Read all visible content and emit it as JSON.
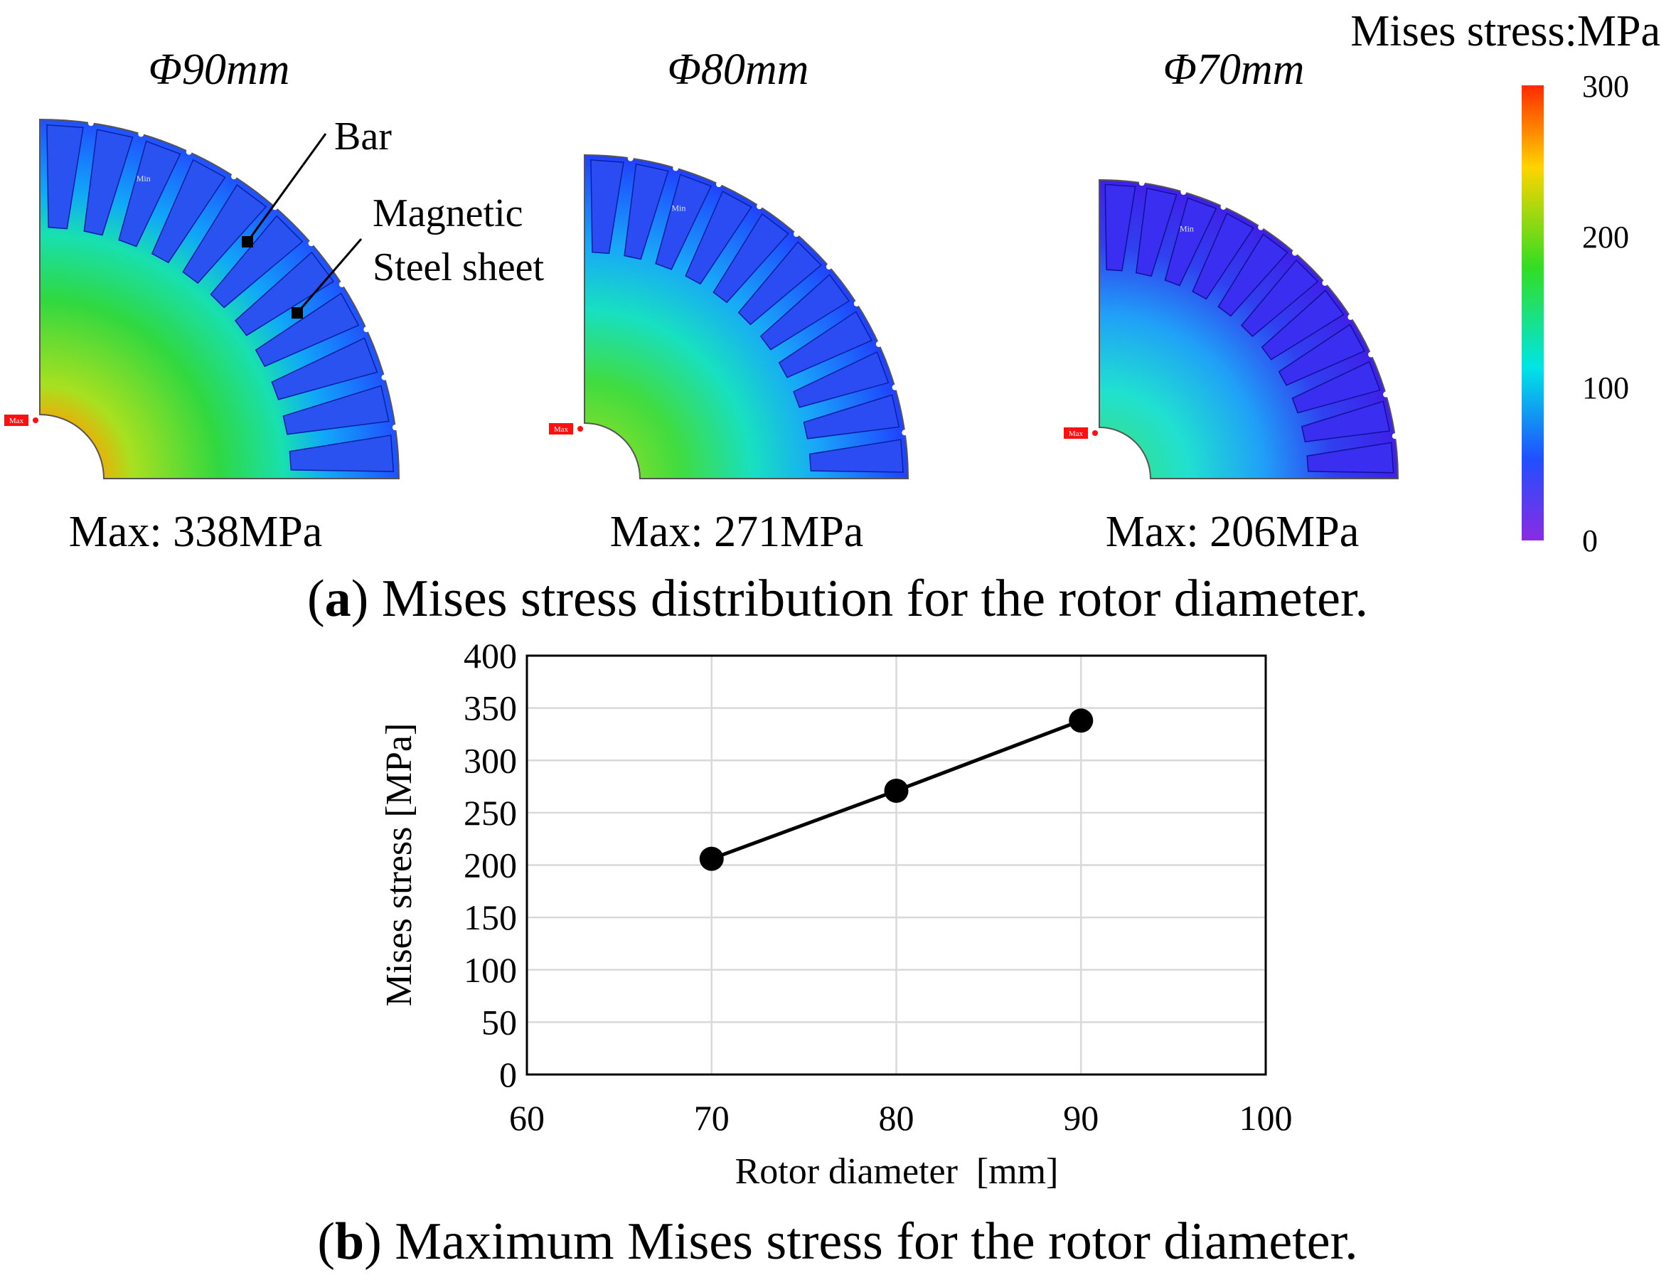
{
  "panel_a": {
    "caption_letter": "a",
    "caption_text": "Mises stress distribution for the rotor diameter.",
    "colorbar": {
      "title": "Mises stress:MPa",
      "ticks": [
        "300",
        "200",
        "100",
        "0"
      ],
      "range": [
        0,
        300
      ],
      "colors": [
        "#ff2a00",
        "#ffd400",
        "#33dd22",
        "#00e5e5",
        "#2050ff",
        "#8a2be2"
      ]
    },
    "rotors": [
      {
        "title": "Φ90mm",
        "max_label": "Max: 338MPa",
        "max_value": 338,
        "diameter_mm": 90,
        "max_tag": "Max",
        "min_tag": "Min"
      },
      {
        "title": "Φ80mm",
        "max_label": "Max: 271MPa",
        "max_value": 271,
        "diameter_mm": 80,
        "max_tag": "Max",
        "min_tag": "Min"
      },
      {
        "title": "Φ70mm",
        "max_label": "Max: 206MPa",
        "max_value": 206,
        "diameter_mm": 70,
        "max_tag": "Max",
        "min_tag": "Min"
      }
    ],
    "annotations": {
      "bar": "Bar",
      "magnetic_line1": "Magnetic",
      "magnetic_line2": "Steel sheet"
    }
  },
  "panel_b": {
    "caption_letter": "b",
    "caption_text": "Maximum Mises stress for the rotor diameter."
  },
  "chart_data": {
    "type": "line",
    "title": "",
    "xlabel": "Rotor diameter  [mm]",
    "ylabel": "Mises stress [MPa]",
    "xlim": [
      60,
      100
    ],
    "ylim": [
      0,
      400
    ],
    "x_ticks": [
      "60",
      "70",
      "80",
      "90",
      "100"
    ],
    "y_ticks": [
      "0",
      "50",
      "100",
      "150",
      "200",
      "250",
      "300",
      "350",
      "400"
    ],
    "grid": true,
    "series": [
      {
        "name": "Maximum Mises stress",
        "x": [
          70,
          80,
          90
        ],
        "y": [
          206,
          271,
          338
        ],
        "color": "#000000"
      }
    ]
  }
}
